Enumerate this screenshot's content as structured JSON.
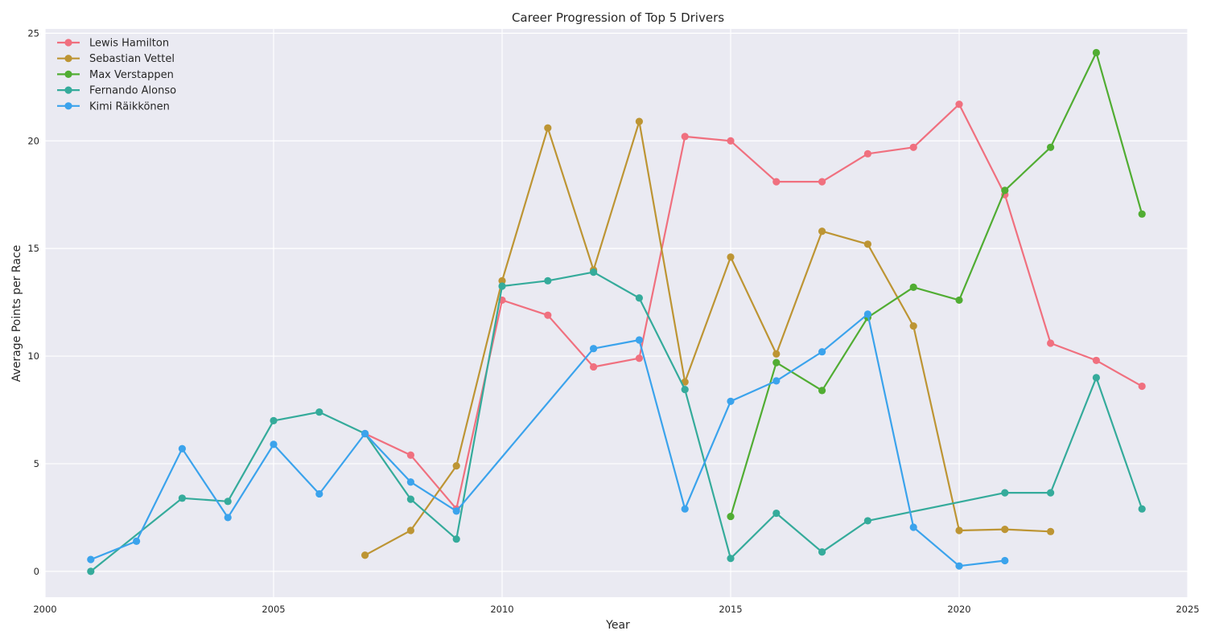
{
  "chart_data": {
    "type": "line",
    "title": "Career Progression of Top 5 Drivers",
    "xlabel": "Year",
    "ylabel": "Average Points per Race",
    "xlim": [
      2000,
      2025
    ],
    "ylim": [
      -1.2,
      25.2
    ],
    "xticks": [
      2000,
      2005,
      2010,
      2015,
      2020,
      2025
    ],
    "yticks": [
      0,
      5,
      10,
      15,
      20,
      25
    ],
    "grid": true,
    "legend_position": "top-left",
    "background": "#eaeaf2",
    "series": [
      {
        "name": "Lewis Hamilton",
        "color": "#f0707f",
        "x": [
          2007,
          2008,
          2009,
          2010,
          2011,
          2012,
          2013,
          2014,
          2015,
          2016,
          2017,
          2018,
          2019,
          2020,
          2021,
          2022,
          2023,
          2024
        ],
        "y": [
          6.4,
          5.4,
          2.9,
          12.6,
          11.9,
          9.5,
          9.9,
          20.2,
          20.0,
          18.1,
          18.1,
          19.4,
          19.7,
          21.7,
          17.5,
          10.6,
          9.8,
          8.6
        ]
      },
      {
        "name": "Sebastian Vettel",
        "color": "#bd9534",
        "x": [
          2007,
          2008,
          2009,
          2010,
          2011,
          2012,
          2013,
          2014,
          2015,
          2016,
          2017,
          2018,
          2019,
          2020,
          2021,
          2022
        ],
        "y": [
          0.75,
          1.9,
          4.9,
          13.5,
          20.6,
          14.0,
          20.9,
          8.8,
          14.6,
          10.1,
          15.8,
          15.2,
          11.4,
          1.9,
          1.95,
          1.85
        ]
      },
      {
        "name": "Max Verstappen",
        "color": "#51ad33",
        "x": [
          2015,
          2016,
          2017,
          2018,
          2019,
          2020,
          2021,
          2022,
          2023,
          2024
        ],
        "y": [
          2.55,
          9.7,
          8.4,
          11.8,
          13.2,
          12.6,
          17.7,
          19.7,
          24.1,
          16.6
        ]
      },
      {
        "name": "Fernando Alonso",
        "color": "#35ab9b",
        "x": [
          2001,
          2003,
          2004,
          2005,
          2006,
          2007,
          2008,
          2009,
          2010,
          2011,
          2012,
          2013,
          2014,
          2015,
          2016,
          2017,
          2018,
          2021,
          2022,
          2023,
          2024
        ],
        "y": [
          0.0,
          3.4,
          3.25,
          7.0,
          7.4,
          6.4,
          3.35,
          1.5,
          13.25,
          13.5,
          13.9,
          12.7,
          8.45,
          0.6,
          2.7,
          0.9,
          2.35,
          3.65,
          3.65,
          9.0,
          2.9
        ]
      },
      {
        "name": "Kimi Räikkönen",
        "color": "#3ba3ec",
        "x": [
          2001,
          2002,
          2003,
          2004,
          2005,
          2006,
          2007,
          2008,
          2009,
          2012,
          2013,
          2014,
          2015,
          2016,
          2017,
          2018,
          2019,
          2020,
          2021
        ],
        "y": [
          0.55,
          1.4,
          5.7,
          2.5,
          5.9,
          3.6,
          6.4,
          4.15,
          2.8,
          10.35,
          10.75,
          2.9,
          7.9,
          8.85,
          10.2,
          11.95,
          2.05,
          0.25,
          0.5
        ]
      }
    ]
  }
}
